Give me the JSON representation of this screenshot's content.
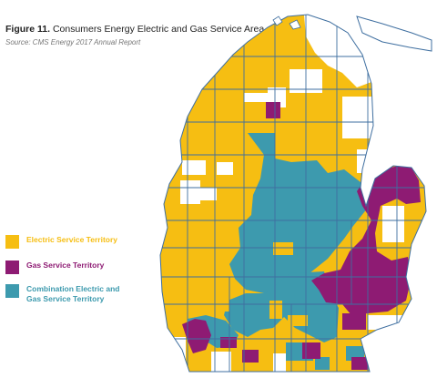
{
  "figure": {
    "number": "Figure 11.",
    "title": "Consumers Energy Electric and Gas Service Area",
    "source": "Source: CMS Energy 2017 Annual Report"
  },
  "colors": {
    "electric": "#F6BE12",
    "gas": "#8E1B73",
    "combination": "#3D9AAE",
    "none": "#FFFFFF",
    "boundary": "#3F6FA0"
  },
  "legend": [
    {
      "key": "electric",
      "label": "Electric Service Territory",
      "color": "#F6BE12"
    },
    {
      "key": "gas",
      "label": "Gas Service Territory",
      "color": "#8E1B73"
    },
    {
      "key": "combination",
      "label": "Combination Electric and Gas Service Territory",
      "color": "#3D9AAE"
    }
  ]
}
